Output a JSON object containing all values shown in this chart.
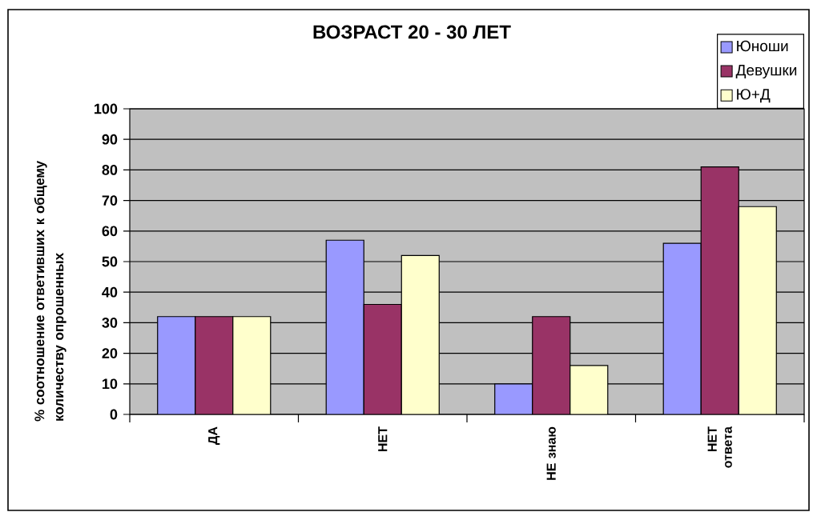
{
  "chart_data": {
    "type": "bar",
    "title": "ВОЗРАСТ 20 - 30 ЛЕТ",
    "ylabel": "% соотношение ответивших к общему количеству опрошенных",
    "categories": [
      "ДА",
      "НЕТ",
      "НЕ знаю",
      "НЕТ ответа"
    ],
    "series": [
      {
        "name": "Юноши",
        "color": "#9999ff",
        "values": [
          32,
          57,
          10,
          56
        ]
      },
      {
        "name": "Девушки",
        "color": "#993366",
        "values": [
          32,
          36,
          32,
          81
        ]
      },
      {
        "name": "Ю+Д",
        "color": "#ffffcc",
        "values": [
          32,
          52,
          16,
          68
        ]
      }
    ],
    "ylim": [
      0,
      100
    ],
    "yticks": [
      0,
      10,
      20,
      30,
      40,
      50,
      60,
      70,
      80,
      90,
      100
    ],
    "grid": "y",
    "legend": "top right"
  }
}
